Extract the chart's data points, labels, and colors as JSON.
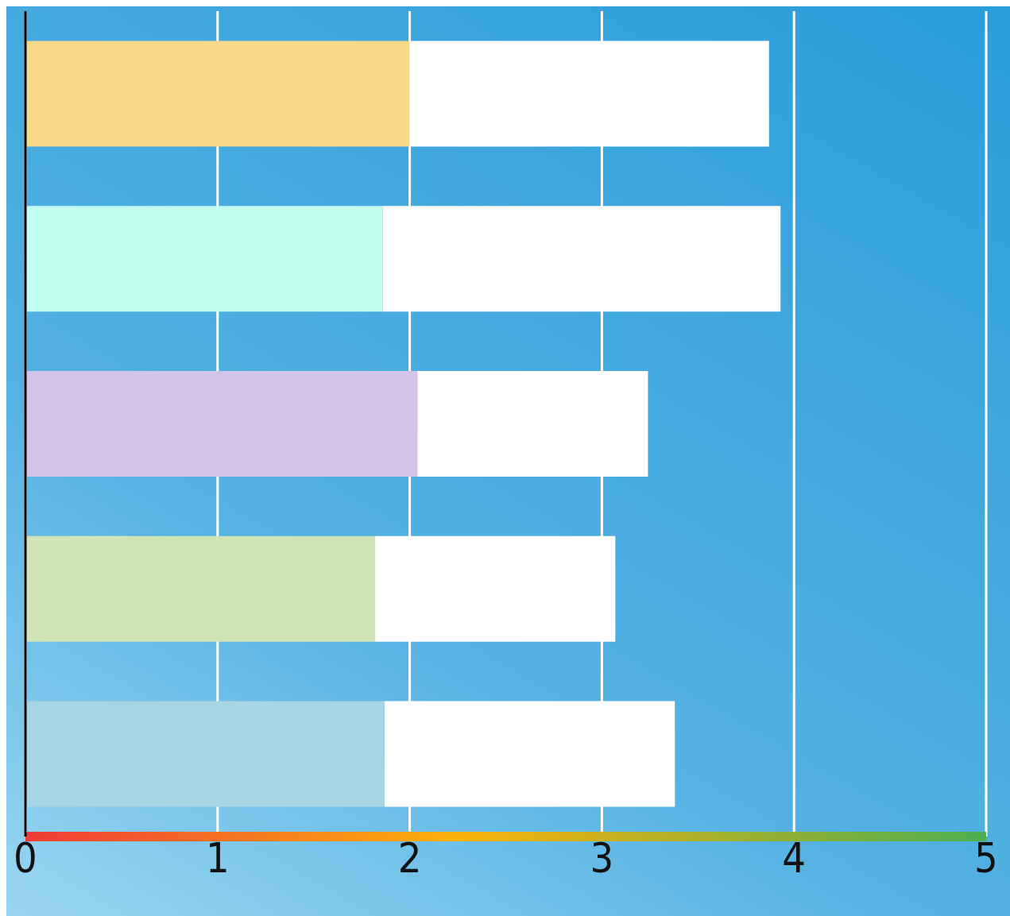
{
  "chart_data": {
    "type": "bar",
    "orientation": "horizontal",
    "stacked": true,
    "categories": [
      null,
      null,
      null,
      null,
      null
    ],
    "series": [
      {
        "colors": [
          "#f9d889",
          "#c1fff0",
          "#d4c5e8",
          "#cfe4b7",
          "#a6d5e3"
        ],
        "values": [
          2.0,
          1.86,
          2.04,
          1.82,
          1.87
        ]
      },
      {
        "color": "#ffffff",
        "values": [
          1.87,
          2.07,
          1.2,
          1.25,
          1.51
        ]
      }
    ],
    "xlim": [
      0,
      5
    ],
    "xticks": [
      0,
      1,
      2,
      3,
      4,
      5
    ],
    "grid": "x",
    "legend": false
  }
}
